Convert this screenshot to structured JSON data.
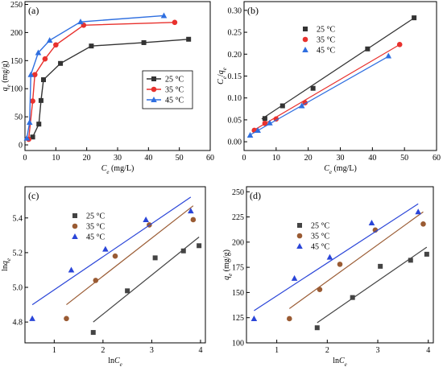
{
  "chart_data": [
    {
      "panel": "(a)",
      "type": "line",
      "xlabel": "Ce (mg/L)",
      "ylabel": "qe (mg/g)",
      "xlim": [
        0,
        60
      ],
      "ylim": [
        -10,
        255
      ],
      "xticks": [
        0,
        10,
        20,
        30,
        40,
        50,
        60
      ],
      "yticks": [
        0,
        50,
        100,
        150,
        200,
        250
      ],
      "legend": "center-right",
      "series": [
        {
          "name": "25 °C",
          "color": "#333333",
          "marker": "square",
          "x": [
            2.5,
            4.5,
            5.2,
            6.0,
            11.5,
            21.5,
            38.5,
            53.0
          ],
          "y": [
            14,
            37,
            79,
            116,
            145,
            176,
            182,
            188
          ]
        },
        {
          "name": "35 °C",
          "color": "#e8312d",
          "marker": "circle",
          "x": [
            1.2,
            2.5,
            3.2,
            6.5,
            10.0,
            19.0,
            48.5
          ],
          "y": [
            10,
            78,
            125,
            153,
            178,
            213,
            218
          ]
        },
        {
          "name": "45 °C",
          "color": "#2f6fe0",
          "marker": "triangle",
          "x": [
            0.6,
            1.5,
            1.9,
            4.3,
            8.0,
            18.0,
            45.0
          ],
          "y": [
            12,
            40,
            125,
            164,
            186,
            219,
            230
          ]
        }
      ]
    },
    {
      "panel": "(b)",
      "type": "scatter",
      "xlabel": "Ce (mg/L)",
      "ylabel": "Ce/qe",
      "xlim": [
        0,
        60
      ],
      "ylim": [
        -0.02,
        0.32
      ],
      "xticks": [
        0,
        10,
        20,
        30,
        40,
        50,
        60
      ],
      "yticks": [
        0.0,
        0.05,
        0.1,
        0.15,
        0.2,
        0.25,
        0.3
      ],
      "legend": "top-left",
      "series": [
        {
          "name": "25 °C",
          "color": "#333333",
          "marker": "square",
          "x": [
            6.5,
            12.0,
            21.5,
            38.5,
            53.0
          ],
          "y": [
            0.053,
            0.082,
            0.122,
            0.212,
            0.283
          ],
          "fit": [
            [
              5.5,
              0.052
            ],
            [
              53.5,
              0.285
            ]
          ]
        },
        {
          "name": "35 °C",
          "color": "#e8312d",
          "marker": "circle",
          "x": [
            3.2,
            6.5,
            10.0,
            19.0,
            48.5
          ],
          "y": [
            0.026,
            0.042,
            0.052,
            0.089,
            0.222
          ],
          "fit": [
            [
              2.5,
              0.024
            ],
            [
              49.0,
              0.224
            ]
          ]
        },
        {
          "name": "45 °C",
          "color": "#2f6fe0",
          "marker": "triangle",
          "x": [
            1.9,
            4.3,
            8.0,
            18.0,
            45.0
          ],
          "y": [
            0.015,
            0.026,
            0.043,
            0.082,
            0.196
          ],
          "fit": [
            [
              1.5,
              0.014
            ],
            [
              45.5,
              0.197
            ]
          ]
        }
      ]
    },
    {
      "panel": "(c)",
      "type": "scatter",
      "xlabel": "lnCe",
      "ylabel": "lnqe",
      "xlim": [
        0.4,
        4.1
      ],
      "ylim": [
        4.68,
        5.58
      ],
      "xticks": [
        1,
        2,
        3,
        4
      ],
      "yticks": [
        4.8,
        5.0,
        5.2,
        5.4
      ],
      "legend": "top-left",
      "series": [
        {
          "name": "25 °C",
          "color": "#444444",
          "marker": "square",
          "x": [
            1.8,
            2.5,
            3.07,
            3.65,
            3.97
          ],
          "y": [
            4.74,
            4.98,
            5.17,
            5.21,
            5.24
          ],
          "fit": [
            [
              1.8,
              4.8
            ],
            [
              3.97,
              5.29
            ]
          ]
        },
        {
          "name": "35 °C",
          "color": "#9a5b33",
          "marker": "circle",
          "x": [
            1.25,
            1.85,
            2.25,
            2.95,
            3.85
          ],
          "y": [
            4.82,
            5.04,
            5.18,
            5.36,
            5.39
          ],
          "fit": [
            [
              1.25,
              4.9
            ],
            [
              3.85,
              5.47
            ]
          ]
        },
        {
          "name": "45 °C",
          "color": "#2a45d8",
          "marker": "triangle",
          "x": [
            0.55,
            1.35,
            2.05,
            2.88,
            3.8
          ],
          "y": [
            4.82,
            5.1,
            5.22,
            5.39,
            5.44
          ],
          "fit": [
            [
              0.55,
              4.9
            ],
            [
              3.8,
              5.52
            ]
          ]
        }
      ]
    },
    {
      "panel": "(d)",
      "type": "scatter",
      "xlabel": "lnCe",
      "ylabel": "qe (mg/g)",
      "xlim": [
        0.4,
        4.1
      ],
      "ylim": [
        100,
        255
      ],
      "xticks": [
        1,
        2,
        3,
        4
      ],
      "yticks": [
        100,
        125,
        150,
        175,
        200,
        225,
        250
      ],
      "legend": "top-left",
      "series": [
        {
          "name": "25 °C",
          "color": "#444444",
          "marker": "square",
          "x": [
            1.8,
            2.5,
            3.05,
            3.65,
            3.97
          ],
          "y": [
            115,
            145,
            176,
            182,
            188
          ],
          "fit": [
            [
              1.8,
              120
            ],
            [
              3.97,
              195
            ]
          ]
        },
        {
          "name": "35 °C",
          "color": "#9a5b33",
          "marker": "circle",
          "x": [
            1.25,
            1.85,
            2.25,
            2.95,
            3.9
          ],
          "y": [
            124,
            153,
            178,
            212,
            218
          ],
          "fit": [
            [
              1.25,
              134
            ],
            [
              3.9,
              230
            ]
          ]
        },
        {
          "name": "45 °C",
          "color": "#2a45d8",
          "marker": "triangle",
          "x": [
            0.55,
            1.35,
            2.05,
            2.88,
            3.8
          ],
          "y": [
            124,
            164,
            185,
            219,
            230
          ],
          "fit": [
            [
              0.55,
              132
            ],
            [
              3.8,
              238
            ]
          ]
        }
      ]
    }
  ]
}
